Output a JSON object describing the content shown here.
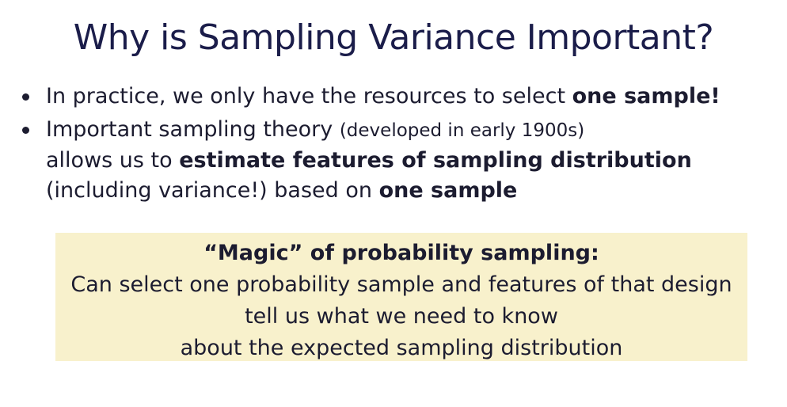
{
  "slide": {
    "title": "Why is Sampling Variance Important?",
    "bullet1": {
      "text": "In practice, we only have the resources to select ",
      "bold": "one sample!"
    },
    "bullet2": {
      "part1": "Important sampling theory ",
      "note": "(developed in early 1900s)",
      "part2": "allows us to ",
      "bold1": "estimate features of sampling distribution",
      "part3": "(including variance!) based on ",
      "bold2": "one sample"
    },
    "callout": {
      "title": "“Magic” of probability sampling:",
      "line1": "Can select one probability sample and features of that design",
      "line2": "tell us what we need to know",
      "line3": "about the expected sampling distribution"
    }
  }
}
